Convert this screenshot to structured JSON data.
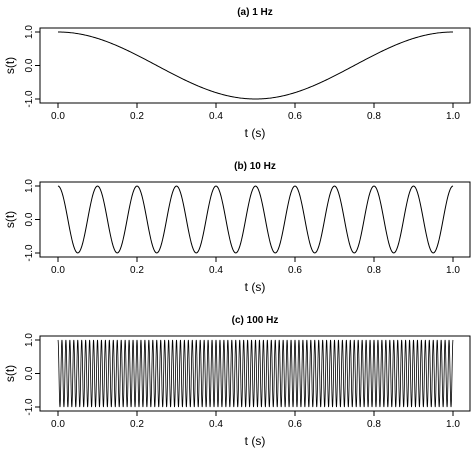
{
  "chart_data": [
    {
      "type": "line",
      "title": "(a)   1  Hz",
      "xlabel": "t (s)",
      "ylabel": "s(t)",
      "frequency_hz": 1,
      "function": "cos(2*pi*f*t)",
      "xlim": [
        0,
        1
      ],
      "ylim": [
        -1,
        1
      ],
      "xticks": [
        "0.0",
        "0.2",
        "0.4",
        "0.6",
        "0.8",
        "1.0"
      ],
      "yticks": [
        "-1.0",
        "0.0",
        "1.0"
      ],
      "grid": false
    },
    {
      "type": "line",
      "title": "(b)   10  Hz",
      "xlabel": "t (s)",
      "ylabel": "s(t)",
      "frequency_hz": 10,
      "function": "cos(2*pi*f*t)",
      "xlim": [
        0,
        1
      ],
      "ylim": [
        -1,
        1
      ],
      "xticks": [
        "0.0",
        "0.2",
        "0.4",
        "0.6",
        "0.8",
        "1.0"
      ],
      "yticks": [
        "-1.0",
        "0.0",
        "1.0"
      ],
      "grid": false
    },
    {
      "type": "line",
      "title": "(c)   100  Hz",
      "xlabel": "t (s)",
      "ylabel": "s(t)",
      "frequency_hz": 100,
      "function": "cos(2*pi*f*t)",
      "xlim": [
        0,
        1
      ],
      "ylim": [
        -1,
        1
      ],
      "xticks": [
        "0.0",
        "0.2",
        "0.4",
        "0.6",
        "0.8",
        "1.0"
      ],
      "yticks": [
        "-1.0",
        "0.0",
        "1.0"
      ],
      "grid": false
    }
  ]
}
